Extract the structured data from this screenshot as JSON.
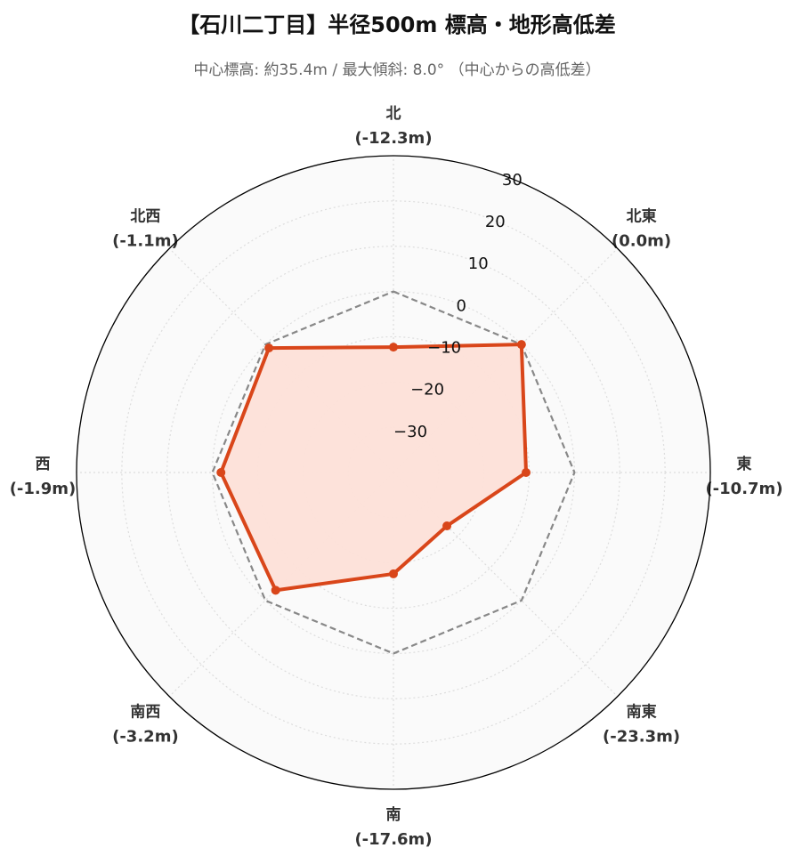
{
  "chart_data": {
    "type": "radar",
    "title": "【石川二丁目】半径500m 標高・地形高低差",
    "subtitle": "中心標高: 約35.4m / 最大傾斜: 8.0° （中心からの高低差）",
    "axes": [
      {
        "name": "北",
        "value": -12.3,
        "label": "(-12.3m)"
      },
      {
        "name": "北東",
        "value": 0.0,
        "label": "(0.0m)"
      },
      {
        "name": "東",
        "value": -10.7,
        "label": "(-10.7m)"
      },
      {
        "name": "南東",
        "value": -23.3,
        "label": "(-23.3m)"
      },
      {
        "name": "南",
        "value": -17.6,
        "label": "(-17.6m)"
      },
      {
        "name": "南西",
        "value": -3.2,
        "label": "(-3.2m)"
      },
      {
        "name": "西",
        "value": -1.9,
        "label": "(-1.9m)"
      },
      {
        "name": "北西",
        "value": -1.1,
        "label": "(-1.1m)"
      }
    ],
    "radial_range": [
      -40,
      30
    ],
    "radial_ticks": [
      -30,
      -20,
      -10,
      0,
      10,
      20,
      30
    ],
    "reference_value": 0,
    "grid": true,
    "colors": {
      "series_line": "#d9461a",
      "series_fill": "#fde0d8",
      "reference_line": "#888888",
      "background": "#fafafa",
      "grid": "#dddddd"
    }
  }
}
